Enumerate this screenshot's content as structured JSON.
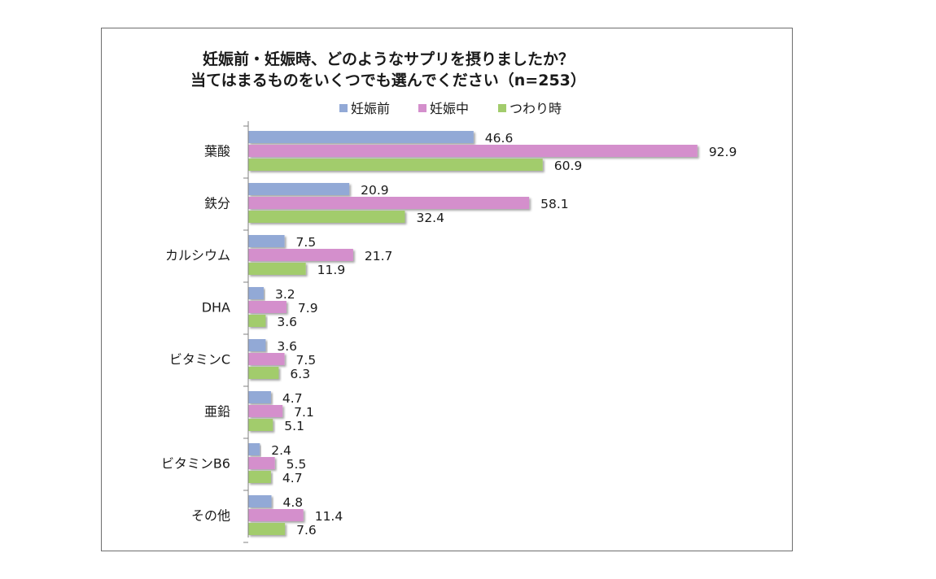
{
  "chart_data": {
    "type": "bar",
    "orientation": "horizontal",
    "title_lines": [
      "妊娠前・妊娠時、どのようなサプリを摂りましたか？",
      "当てはまるものをいくつでも選んでください（n=253）"
    ],
    "categories": [
      "葉酸",
      "鉄分",
      "カルシウム",
      "DHA",
      "ビタミンC",
      "亜鉛",
      "ビタミンB6",
      "その他"
    ],
    "series": [
      {
        "name": "妊娠前",
        "color": "#92a9d6",
        "values": [
          46.6,
          20.9,
          7.5,
          3.2,
          3.6,
          4.7,
          2.4,
          4.8
        ]
      },
      {
        "name": "妊娠中",
        "color": "#d48fcc",
        "values": [
          92.9,
          58.1,
          21.7,
          7.9,
          7.5,
          7.1,
          5.5,
          11.4
        ]
      },
      {
        "name": "つわり時",
        "color": "#a2cc6c",
        "values": [
          60.9,
          32.4,
          11.9,
          3.6,
          6.3,
          5.1,
          4.7,
          7.6
        ]
      }
    ],
    "xlim": [
      0,
      100
    ],
    "legend_position": "top",
    "data_labels": true,
    "grid": false
  }
}
